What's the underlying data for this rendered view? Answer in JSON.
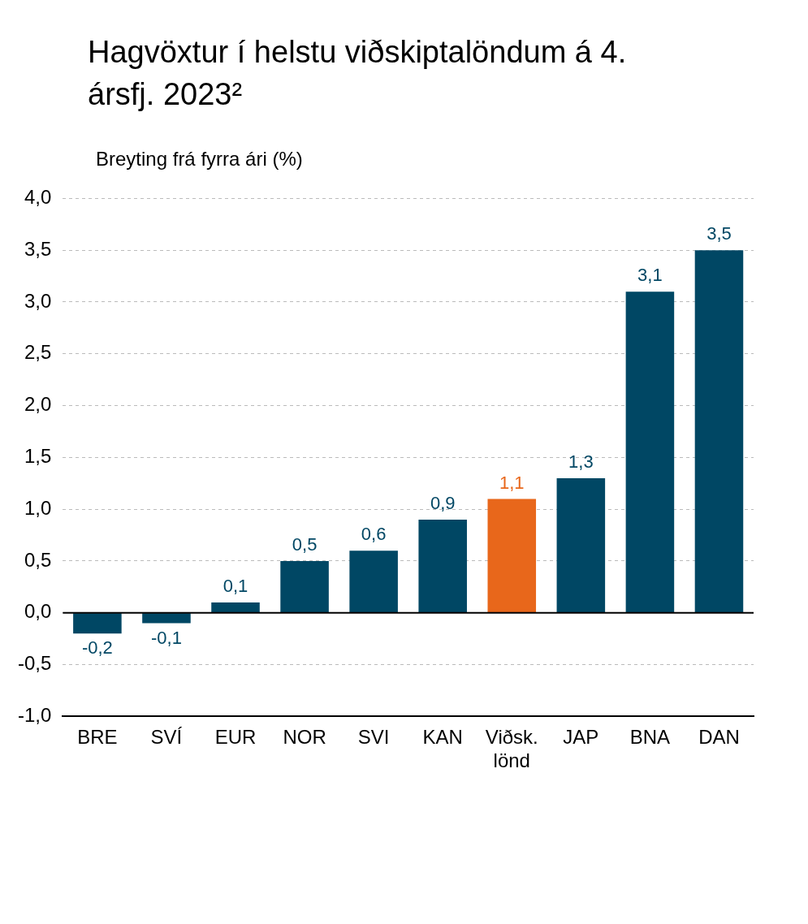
{
  "chart_data": {
    "type": "bar",
    "title": "Hagvöxtur í helstu viðskiptalöndum á 4. ársfj. 2023²",
    "ylabel": "Breyting frá fyrra ári (%)",
    "categories": [
      "BRE",
      "SVÍ",
      "EUR",
      "NOR",
      "SVI",
      "KAN",
      "Viðsk. lönd",
      "JAP",
      "BNA",
      "DAN"
    ],
    "values": [
      -0.2,
      -0.1,
      0.1,
      0.5,
      0.6,
      0.9,
      1.1,
      1.3,
      3.1,
      3.5
    ],
    "value_labels": [
      "-0,2",
      "-0,1",
      "0,1",
      "0,5",
      "0,6",
      "0,9",
      "1,1",
      "1,3",
      "3,1",
      "3,5"
    ],
    "colors": [
      "#004764",
      "#004764",
      "#004764",
      "#004764",
      "#004764",
      "#004764",
      "#e8671b",
      "#004764",
      "#004764",
      "#004764"
    ],
    "ylim": [
      -1,
      4
    ],
    "yticks": [
      {
        "value": -1,
        "label": "-1,0"
      },
      {
        "value": -0.5,
        "label": "-0,5"
      },
      {
        "value": 0,
        "label": "0,0"
      },
      {
        "value": 0.5,
        "label": "0,5"
      },
      {
        "value": 1,
        "label": "1,0"
      },
      {
        "value": 1.5,
        "label": "1,5"
      },
      {
        "value": 2,
        "label": "2,0"
      },
      {
        "value": 2.5,
        "label": "2,5"
      },
      {
        "value": 3,
        "label": "3,0"
      },
      {
        "value": 3.5,
        "label": "3,5"
      },
      {
        "value": 4,
        "label": "4,0"
      }
    ],
    "grid": "y",
    "legend": false
  }
}
